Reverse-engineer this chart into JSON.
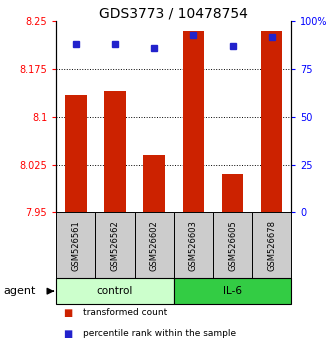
{
  "title": "GDS3773 / 10478754",
  "samples": [
    "GSM526561",
    "GSM526562",
    "GSM526602",
    "GSM526603",
    "GSM526605",
    "GSM526678"
  ],
  "bar_values": [
    8.135,
    8.14,
    8.04,
    8.235,
    8.01,
    8.235
  ],
  "percentile_values": [
    88,
    88,
    86,
    93,
    87,
    92
  ],
  "ylim_left": [
    7.95,
    8.25
  ],
  "ylim_right": [
    0,
    100
  ],
  "yticks_left": [
    7.95,
    8.025,
    8.1,
    8.175,
    8.25
  ],
  "ytick_labels_left": [
    "7.95",
    "8.025",
    "8.1",
    "8.175",
    "8.25"
  ],
  "yticks_right": [
    0,
    25,
    50,
    75,
    100
  ],
  "ytick_labels_right": [
    "0",
    "25",
    "50",
    "75",
    "100%"
  ],
  "grid_ticks": [
    8.025,
    8.1,
    8.175
  ],
  "bar_color": "#cc2200",
  "dot_color": "#2222cc",
  "groups": [
    {
      "label": "control",
      "indices": [
        0,
        1,
        2
      ],
      "color": "#ccffcc"
    },
    {
      "label": "IL-6",
      "indices": [
        3,
        4,
        5
      ],
      "color": "#33cc44"
    }
  ],
  "agent_label": "agent",
  "legend_items": [
    {
      "label": "transformed count",
      "color": "#cc2200"
    },
    {
      "label": "percentile rank within the sample",
      "color": "#2222cc"
    }
  ],
  "title_fontsize": 10,
  "bar_width": 0.55,
  "sample_area_bg": "#cccccc",
  "tick_fontsize": 7
}
